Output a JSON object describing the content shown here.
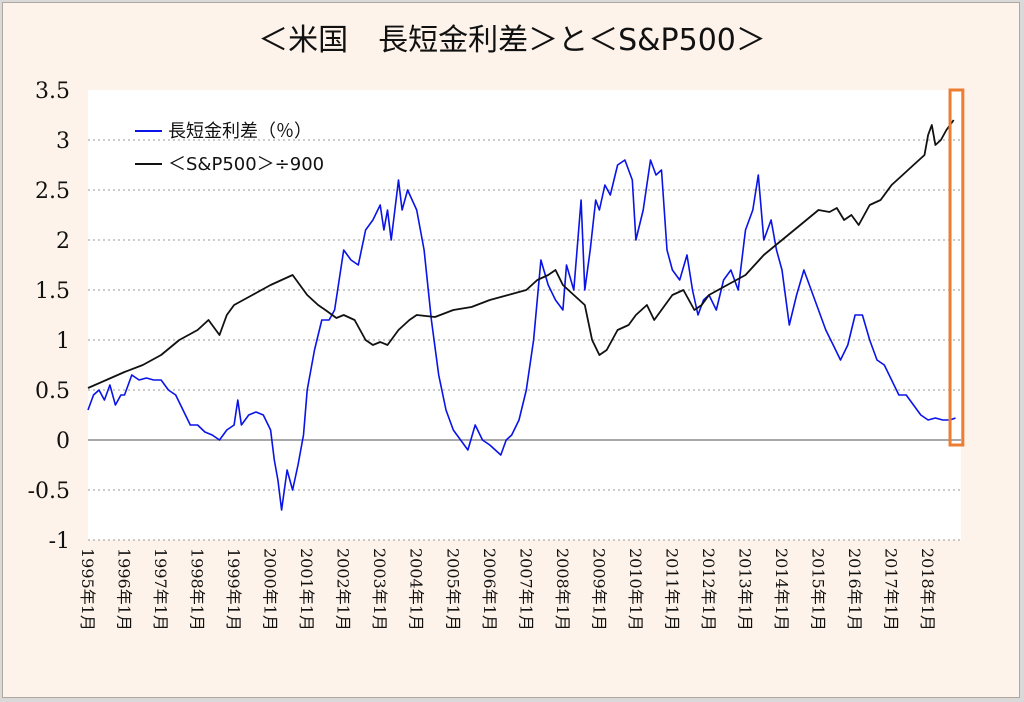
{
  "chart_data": {
    "type": "line",
    "title": "＜米国　長短金利差＞と＜S&P500＞",
    "xlabel": "",
    "ylabel": "",
    "ylim": [
      -1,
      3.5
    ],
    "y_ticks": [
      3.5,
      3,
      2.5,
      2,
      1.5,
      1,
      0.5,
      0,
      -0.5,
      -1
    ],
    "y_tick_labels": [
      "3.5",
      "3",
      "2.5",
      "2",
      "1.5",
      "1",
      "0.5",
      "0",
      "-0.5",
      "-1"
    ],
    "x_tick_labels": [
      "1995年1月",
      "1996年1月",
      "1997年1月",
      "1998年1月",
      "1999年1月",
      "2000年1月",
      "2001年1月",
      "2002年1月",
      "2003年1月",
      "2004年1月",
      "2005年1月",
      "2006年1月",
      "2007年1月",
      "2008年1月",
      "2009年1月",
      "2010年1月",
      "2011年1月",
      "2012年1月",
      "2013年1月",
      "2014年1月",
      "2015年1月",
      "2016年1月",
      "2017年1月",
      "2018年1月"
    ],
    "x_range": [
      1995.0,
      2018.9
    ],
    "grid": true,
    "legend_position": "top-left",
    "highlight": {
      "x_from": 2018.6,
      "x_to": 2018.95,
      "y_from": -0.05,
      "y_to": 3.5,
      "color": "#ed7d31"
    },
    "series": [
      {
        "name": "長短金利差（％）",
        "color": "#0a14e6",
        "x": [
          1995.0,
          1995.15,
          1995.3,
          1995.45,
          1995.6,
          1995.75,
          1995.9,
          1996.0,
          1996.2,
          1996.4,
          1996.6,
          1996.8,
          1997.0,
          1997.2,
          1997.4,
          1997.6,
          1997.8,
          1998.0,
          1998.2,
          1998.4,
          1998.6,
          1998.8,
          1999.0,
          1999.1,
          1999.2,
          1999.4,
          1999.6,
          1999.8,
          2000.0,
          2000.1,
          2000.2,
          2000.3,
          2000.45,
          2000.6,
          2000.75,
          2000.9,
          2001.0,
          2001.2,
          2001.4,
          2001.6,
          2001.75,
          2002.0,
          2002.2,
          2002.4,
          2002.6,
          2002.8,
          2003.0,
          2003.1,
          2003.2,
          2003.3,
          2003.5,
          2003.6,
          2003.75,
          2004.0,
          2004.2,
          2004.4,
          2004.6,
          2004.8,
          2005.0,
          2005.2,
          2005.4,
          2005.6,
          2005.8,
          2006.0,
          2006.15,
          2006.3,
          2006.45,
          2006.6,
          2006.8,
          2007.0,
          2007.2,
          2007.4,
          2007.6,
          2007.8,
          2008.0,
          2008.1,
          2008.3,
          2008.5,
          2008.6,
          2008.75,
          2008.9,
          2009.0,
          2009.15,
          2009.3,
          2009.5,
          2009.7,
          2009.9,
          2010.0,
          2010.2,
          2010.4,
          2010.55,
          2010.7,
          2010.85,
          2011.0,
          2011.2,
          2011.4,
          2011.55,
          2011.7,
          2011.85,
          2012.0,
          2012.2,
          2012.4,
          2012.6,
          2012.8,
          2013.0,
          2013.2,
          2013.35,
          2013.5,
          2013.7,
          2013.85,
          2014.0,
          2014.2,
          2014.4,
          2014.6,
          2014.8,
          2015.0,
          2015.2,
          2015.4,
          2015.6,
          2015.8,
          2016.0,
          2016.2,
          2016.4,
          2016.6,
          2016.8,
          2017.0,
          2017.2,
          2017.4,
          2017.6,
          2017.8,
          2018.0,
          2018.2,
          2018.4,
          2018.6,
          2018.75
        ],
        "values": [
          0.3,
          0.45,
          0.5,
          0.4,
          0.55,
          0.35,
          0.45,
          0.45,
          0.65,
          0.6,
          0.62,
          0.6,
          0.6,
          0.5,
          0.45,
          0.3,
          0.15,
          0.15,
          0.08,
          0.05,
          0.0,
          0.1,
          0.15,
          0.4,
          0.15,
          0.25,
          0.28,
          0.25,
          0.1,
          -0.2,
          -0.4,
          -0.7,
          -0.3,
          -0.5,
          -0.25,
          0.05,
          0.5,
          0.9,
          1.2,
          1.2,
          1.3,
          1.9,
          1.8,
          1.75,
          2.1,
          2.2,
          2.35,
          2.1,
          2.3,
          2.0,
          2.6,
          2.3,
          2.5,
          2.3,
          1.9,
          1.2,
          0.65,
          0.3,
          0.1,
          0.0,
          -0.1,
          0.15,
          0.0,
          -0.05,
          -0.1,
          -0.15,
          0.0,
          0.05,
          0.2,
          0.5,
          1.0,
          1.8,
          1.55,
          1.4,
          1.3,
          1.75,
          1.5,
          2.4,
          1.5,
          1.9,
          2.4,
          2.3,
          2.55,
          2.45,
          2.75,
          2.8,
          2.6,
          2.0,
          2.3,
          2.8,
          2.65,
          2.7,
          1.9,
          1.7,
          1.6,
          1.85,
          1.5,
          1.25,
          1.4,
          1.45,
          1.3,
          1.6,
          1.7,
          1.5,
          2.1,
          2.3,
          2.65,
          2.0,
          2.2,
          1.9,
          1.7,
          1.15,
          1.45,
          1.7,
          1.5,
          1.3,
          1.1,
          0.95,
          0.8,
          0.95,
          1.25,
          1.25,
          1.0,
          0.8,
          0.75,
          0.6,
          0.45,
          0.45,
          0.35,
          0.25,
          0.2,
          0.22,
          0.2,
          0.2,
          0.22
        ],
        "note": "visual trace approximated"
      },
      {
        "name": "＜S&P500＞÷900",
        "color": "#111111",
        "x": [
          1995.0,
          1995.5,
          1996.0,
          1996.5,
          1997.0,
          1997.5,
          1998.0,
          1998.3,
          1998.6,
          1998.8,
          1999.0,
          1999.5,
          2000.0,
          2000.3,
          2000.6,
          2000.8,
          2001.0,
          2001.3,
          2001.5,
          2001.8,
          2002.0,
          2002.3,
          2002.6,
          2002.8,
          2003.0,
          2003.2,
          2003.5,
          2003.8,
          2004.0,
          2004.5,
          2005.0,
          2005.5,
          2006.0,
          2006.5,
          2007.0,
          2007.3,
          2007.6,
          2007.8,
          2008.0,
          2008.3,
          2008.6,
          2008.8,
          2009.0,
          2009.2,
          2009.5,
          2009.8,
          2010.0,
          2010.3,
          2010.5,
          2010.8,
          2011.0,
          2011.3,
          2011.6,
          2011.8,
          2012.0,
          2012.5,
          2013.0,
          2013.5,
          2014.0,
          2014.5,
          2015.0,
          2015.3,
          2015.5,
          2015.7,
          2015.9,
          2016.1,
          2016.4,
          2016.7,
          2017.0,
          2017.3,
          2017.6,
          2017.9,
          2018.0,
          2018.1,
          2018.2,
          2018.35,
          2018.5,
          2018.7
        ],
        "values": [
          0.52,
          0.6,
          0.68,
          0.75,
          0.85,
          1.0,
          1.1,
          1.2,
          1.05,
          1.25,
          1.35,
          1.45,
          1.55,
          1.6,
          1.65,
          1.55,
          1.45,
          1.35,
          1.3,
          1.22,
          1.25,
          1.2,
          1.0,
          0.95,
          0.98,
          0.95,
          1.1,
          1.2,
          1.25,
          1.23,
          1.3,
          1.33,
          1.4,
          1.45,
          1.5,
          1.6,
          1.65,
          1.7,
          1.55,
          1.45,
          1.35,
          1.0,
          0.85,
          0.9,
          1.1,
          1.15,
          1.25,
          1.35,
          1.2,
          1.35,
          1.45,
          1.5,
          1.3,
          1.35,
          1.45,
          1.55,
          1.65,
          1.85,
          2.0,
          2.15,
          2.3,
          2.28,
          2.32,
          2.2,
          2.25,
          2.15,
          2.35,
          2.4,
          2.55,
          2.65,
          2.75,
          2.85,
          3.05,
          3.15,
          2.95,
          3.0,
          3.1,
          3.2
        ],
        "note": "visual trace approximated"
      }
    ]
  }
}
